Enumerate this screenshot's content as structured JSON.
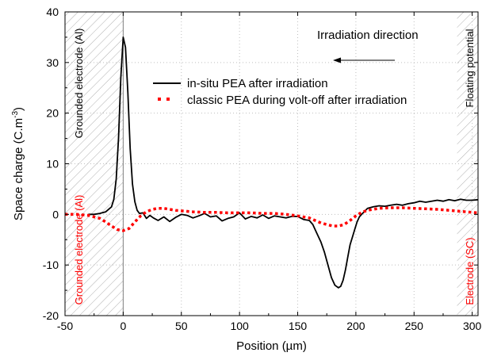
{
  "chart_data": {
    "type": "line",
    "xlabel": "Position (µm)",
    "ylabel": "Space charge (C.m",
    "ylabel_superscript": "-3",
    "xlim": [
      -50,
      305
    ],
    "ylim": [
      -20,
      40
    ],
    "x_ticks": [
      -50,
      0,
      50,
      100,
      150,
      200,
      250,
      300
    ],
    "y_ticks": [
      -20,
      -10,
      0,
      10,
      20,
      30,
      40
    ],
    "grid": true,
    "grid_style": "dotted",
    "legend_position": "top-center",
    "annotations": {
      "irradiation_direction": "Irradiation direction",
      "grounded_electrode_top": "Grounded electrode (Al)",
      "grounded_electrode_bottom": "Grounded electrode (Al)",
      "floating_potential": "Floating potential",
      "electrode_sc": "Electrode (SC)"
    },
    "colors": {
      "in_situ": "#000000",
      "classic": "#ff0000",
      "hatch": "#b0b0b0",
      "grid": "#bfbfbf",
      "red_label": "#ff0000"
    },
    "series": [
      {
        "name": "in-situ PEA after irradiation",
        "style": "solid",
        "x": [
          -30,
          -25,
          -20,
          -15,
          -10,
          -8,
          -6,
          -4,
          -2,
          0,
          2,
          4,
          6,
          8,
          10,
          12,
          14,
          17,
          20,
          23,
          26,
          30,
          35,
          40,
          45,
          50,
          55,
          60,
          65,
          70,
          75,
          80,
          85,
          90,
          95,
          100,
          105,
          110,
          115,
          120,
          125,
          130,
          135,
          140,
          145,
          150,
          155,
          160,
          163,
          166,
          170,
          173,
          176,
          179,
          182,
          185,
          187,
          189,
          191,
          193,
          195,
          197,
          199,
          201,
          203,
          205,
          207,
          210,
          215,
          220,
          225,
          230,
          235,
          240,
          245,
          250,
          255,
          260,
          265,
          270,
          275,
          280,
          285,
          290,
          295,
          300,
          305
        ],
        "y": [
          0,
          0,
          0.2,
          0.5,
          1.5,
          3,
          7,
          15,
          27,
          35,
          33,
          24,
          13,
          6,
          2.5,
          0.8,
          0.2,
          0.3,
          -0.8,
          -0.2,
          -0.7,
          -1.2,
          -0.5,
          -1.4,
          -0.6,
          0,
          -0.2,
          -0.7,
          -0.3,
          0.2,
          -0.5,
          -0.3,
          -1.3,
          -0.8,
          -0.5,
          0.3,
          -0.9,
          -0.4,
          -0.7,
          -0.1,
          -0.8,
          -0.3,
          -0.5,
          -0.7,
          -0.4,
          -0.4,
          -1,
          -1.2,
          -2,
          -3.5,
          -5.5,
          -7.5,
          -10,
          -12.5,
          -14,
          -14.5,
          -14.2,
          -13,
          -11,
          -8.5,
          -6,
          -4.5,
          -3,
          -1.5,
          -0.5,
          0,
          0.5,
          1.2,
          1.5,
          1.7,
          1.6,
          1.8,
          2,
          1.8,
          2.1,
          2.3,
          2.6,
          2.4,
          2.6,
          2.8,
          2.6,
          2.9,
          2.7,
          3,
          2.8,
          2.8,
          2.9
        ]
      },
      {
        "name": "classic PEA during volt-off after irradiation",
        "style": "dotted",
        "x": [
          -50,
          -40,
          -30,
          -20,
          -15,
          -10,
          -5,
          0,
          5,
          10,
          15,
          20,
          25,
          30,
          35,
          40,
          45,
          50,
          60,
          70,
          80,
          90,
          100,
          110,
          120,
          130,
          140,
          150,
          160,
          165,
          170,
          175,
          180,
          185,
          190,
          195,
          200,
          205,
          210,
          220,
          230,
          240,
          250,
          260,
          270,
          280,
          290,
          300,
          305
        ],
        "y": [
          0,
          0,
          -0.2,
          -0.8,
          -1.5,
          -2.3,
          -3,
          -3.2,
          -2.8,
          -1.5,
          -0.3,
          0.5,
          1,
          1.2,
          1.2,
          1,
          0.8,
          0.7,
          0.5,
          0.4,
          0.4,
          0.3,
          0.3,
          0.3,
          0.2,
          0.2,
          0,
          -0.3,
          -0.7,
          -1.2,
          -1.7,
          -2,
          -2.3,
          -2.3,
          -2,
          -1.2,
          -0.3,
          0.4,
          0.8,
          1.2,
          1.3,
          1.3,
          1.2,
          1.1,
          1,
          0.8,
          0.6,
          0.4,
          0.3
        ]
      }
    ]
  }
}
